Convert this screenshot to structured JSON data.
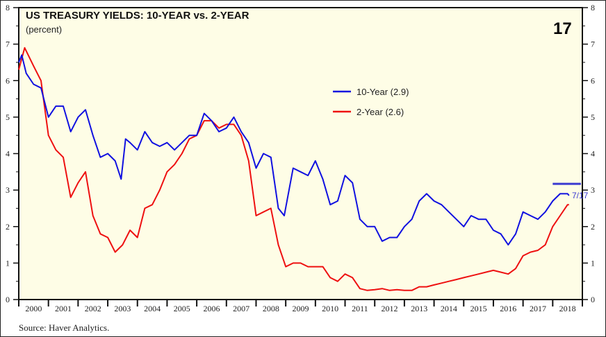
{
  "chart_data": {
    "type": "line",
    "title": "US TREASURY YIELDS: 10-YEAR vs. 2-YEAR",
    "subtitle": "(percent)",
    "page_number": "17",
    "source": "Source: Haver Analytics.",
    "ylim": [
      0,
      8
    ],
    "yticks": [
      0,
      1,
      2,
      3,
      4,
      5,
      6,
      7,
      8
    ],
    "xlim": [
      2000,
      2019
    ],
    "xtick_labels": [
      "2000",
      "2001",
      "2002",
      "2003",
      "2004",
      "2005",
      "2006",
      "2007",
      "2008",
      "2009",
      "2010",
      "2011",
      "2012",
      "2013",
      "2014",
      "2015",
      "2016",
      "2017",
      "2018"
    ],
    "legend_position": "center-right",
    "colors": {
      "ten_year": "#1010e0",
      "two_year": "#ee1010",
      "background": "#fefde6",
      "annotation": "#3a3ad0"
    },
    "annotation": {
      "label": "7/17",
      "value": 3.17,
      "x_range": [
        2018.0,
        2018.95
      ]
    },
    "series": [
      {
        "name": "10-Year (2.9)",
        "key": "ten_year",
        "x": [
          2000,
          2000.1,
          2000.25,
          2000.5,
          2000.75,
          2001,
          2001.25,
          2001.5,
          2001.75,
          2002,
          2002.25,
          2002.5,
          2002.75,
          2003,
          2003.25,
          2003.45,
          2003.6,
          2003.75,
          2004,
          2004.25,
          2004.5,
          2004.75,
          2005,
          2005.25,
          2005.5,
          2005.75,
          2006,
          2006.25,
          2006.5,
          2006.75,
          2007,
          2007.25,
          2007.5,
          2007.75,
          2008,
          2008.25,
          2008.5,
          2008.75,
          2008.95,
          2009.25,
          2009.5,
          2009.75,
          2010,
          2010.25,
          2010.5,
          2010.75,
          2011,
          2011.25,
          2011.5,
          2011.75,
          2012,
          2012.25,
          2012.5,
          2012.75,
          2013,
          2013.25,
          2013.5,
          2013.75,
          2014,
          2014.25,
          2014.5,
          2014.75,
          2015,
          2015.25,
          2015.5,
          2015.75,
          2016,
          2016.25,
          2016.5,
          2016.75,
          2017,
          2017.25,
          2017.5,
          2017.75,
          2018,
          2018.25,
          2018.5,
          2018.55
        ],
        "values": [
          6.5,
          6.7,
          6.2,
          5.9,
          5.8,
          5.0,
          5.3,
          5.3,
          4.6,
          5.0,
          5.2,
          4.5,
          3.9,
          4.0,
          3.8,
          3.3,
          4.4,
          4.3,
          4.1,
          4.6,
          4.3,
          4.2,
          4.3,
          4.1,
          4.3,
          4.5,
          4.5,
          5.1,
          4.9,
          4.6,
          4.7,
          5.0,
          4.6,
          4.3,
          3.6,
          4.0,
          3.9,
          2.5,
          2.3,
          3.6,
          3.5,
          3.4,
          3.8,
          3.3,
          2.6,
          2.7,
          3.4,
          3.2,
          2.2,
          2.0,
          2.0,
          1.6,
          1.7,
          1.7,
          2.0,
          2.2,
          2.7,
          2.9,
          2.7,
          2.6,
          2.4,
          2.2,
          2.0,
          2.3,
          2.2,
          2.2,
          1.9,
          1.8,
          1.5,
          1.8,
          2.4,
          2.3,
          2.2,
          2.4,
          2.7,
          2.9,
          2.9,
          2.85
        ]
      },
      {
        "name": "2-Year (2.6)",
        "key": "two_year",
        "x": [
          2000,
          2000.2,
          2000.5,
          2000.75,
          2001,
          2001.25,
          2001.5,
          2001.75,
          2002,
          2002.25,
          2002.5,
          2002.75,
          2003,
          2003.25,
          2003.5,
          2003.75,
          2004,
          2004.25,
          2004.5,
          2004.75,
          2005,
          2005.25,
          2005.5,
          2005.75,
          2006,
          2006.25,
          2006.5,
          2006.75,
          2007,
          2007.25,
          2007.5,
          2007.75,
          2008,
          2008.25,
          2008.5,
          2008.75,
          2009,
          2009.25,
          2009.5,
          2009.75,
          2010,
          2010.25,
          2010.5,
          2010.75,
          2011,
          2011.25,
          2011.5,
          2011.75,
          2012,
          2012.25,
          2012.5,
          2012.75,
          2013,
          2013.25,
          2013.5,
          2013.75,
          2014,
          2014.25,
          2014.5,
          2014.75,
          2015,
          2015.25,
          2015.5,
          2015.75,
          2016,
          2016.25,
          2016.5,
          2016.75,
          2017,
          2017.25,
          2017.5,
          2017.75,
          2018,
          2018.25,
          2018.5,
          2018.55
        ],
        "values": [
          6.3,
          6.9,
          6.4,
          6.0,
          4.5,
          4.1,
          3.9,
          2.8,
          3.2,
          3.5,
          2.3,
          1.8,
          1.7,
          1.3,
          1.5,
          1.9,
          1.7,
          2.5,
          2.6,
          3.0,
          3.5,
          3.7,
          4.0,
          4.4,
          4.5,
          4.9,
          4.9,
          4.7,
          4.8,
          4.8,
          4.5,
          3.8,
          2.3,
          2.4,
          2.5,
          1.5,
          0.9,
          1.0,
          1.0,
          0.9,
          0.9,
          0.9,
          0.6,
          0.5,
          0.7,
          0.6,
          0.3,
          0.25,
          0.27,
          0.3,
          0.25,
          0.27,
          0.25,
          0.25,
          0.35,
          0.35,
          0.4,
          0.45,
          0.5,
          0.55,
          0.6,
          0.65,
          0.7,
          0.75,
          0.8,
          0.75,
          0.7,
          0.85,
          1.2,
          1.3,
          1.35,
          1.5,
          2.0,
          2.3,
          2.6,
          2.6
        ]
      }
    ]
  }
}
